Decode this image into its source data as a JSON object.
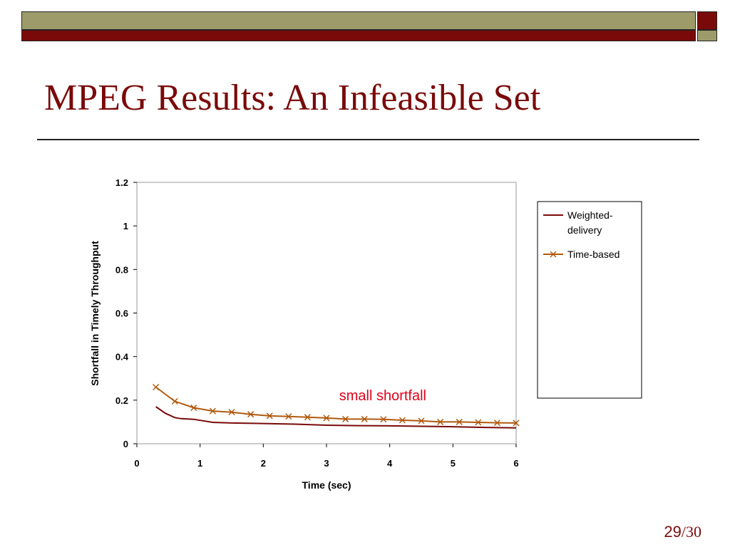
{
  "slide": {
    "title": "MPEG Results: An Infeasible Set",
    "page_current": "29",
    "page_separator": "/",
    "page_total": "30"
  },
  "colors": {
    "olive": "#9d9b6a",
    "dark_red": "#7a0a0a",
    "weighted_line": "#7a0a0a",
    "time_based_line": "#b05a10",
    "annotation": "#e0001a"
  },
  "chart_data": {
    "type": "line",
    "xlabel": "Time (sec)",
    "ylabel": "Shortfall in Timely Throughput",
    "xlim": [
      0,
      6
    ],
    "ylim": [
      0,
      1.2
    ],
    "xticks": [
      0,
      1,
      2,
      3,
      4,
      5,
      6
    ],
    "yticks": [
      0,
      0.2,
      0.4,
      0.6,
      0.8,
      1,
      1.2
    ],
    "ytick_labels": [
      "0",
      "0.2",
      "0.4",
      "0.6",
      "0.8",
      "1",
      "1.2"
    ],
    "grid": false,
    "legend_position": "right",
    "series": [
      {
        "name": "Weighted-delivery",
        "marker": "none",
        "x": [
          0.3,
          0.45,
          0.6,
          0.7,
          0.9,
          1.2,
          1.5,
          2.0,
          2.5,
          3.0,
          3.5,
          4.0,
          4.5,
          5.0,
          5.5,
          6.0
        ],
        "y": [
          0.17,
          0.14,
          0.12,
          0.115,
          0.112,
          0.098,
          0.095,
          0.093,
          0.09,
          0.085,
          0.083,
          0.082,
          0.08,
          0.078,
          0.075,
          0.073
        ]
      },
      {
        "name": "Time-based",
        "marker": "x",
        "x": [
          0.3,
          0.6,
          0.9,
          1.2,
          1.5,
          1.8,
          2.1,
          2.4,
          2.7,
          3.0,
          3.3,
          3.6,
          3.9,
          4.2,
          4.5,
          4.8,
          5.1,
          5.4,
          5.7,
          6.0
        ],
        "y": [
          0.26,
          0.195,
          0.165,
          0.15,
          0.145,
          0.135,
          0.128,
          0.125,
          0.122,
          0.118,
          0.113,
          0.113,
          0.112,
          0.108,
          0.105,
          0.1,
          0.1,
          0.098,
          0.096,
          0.095
        ]
      }
    ],
    "annotations": [
      {
        "text": "small shortfall",
        "x": 3.2,
        "y": 0.2
      }
    ]
  }
}
